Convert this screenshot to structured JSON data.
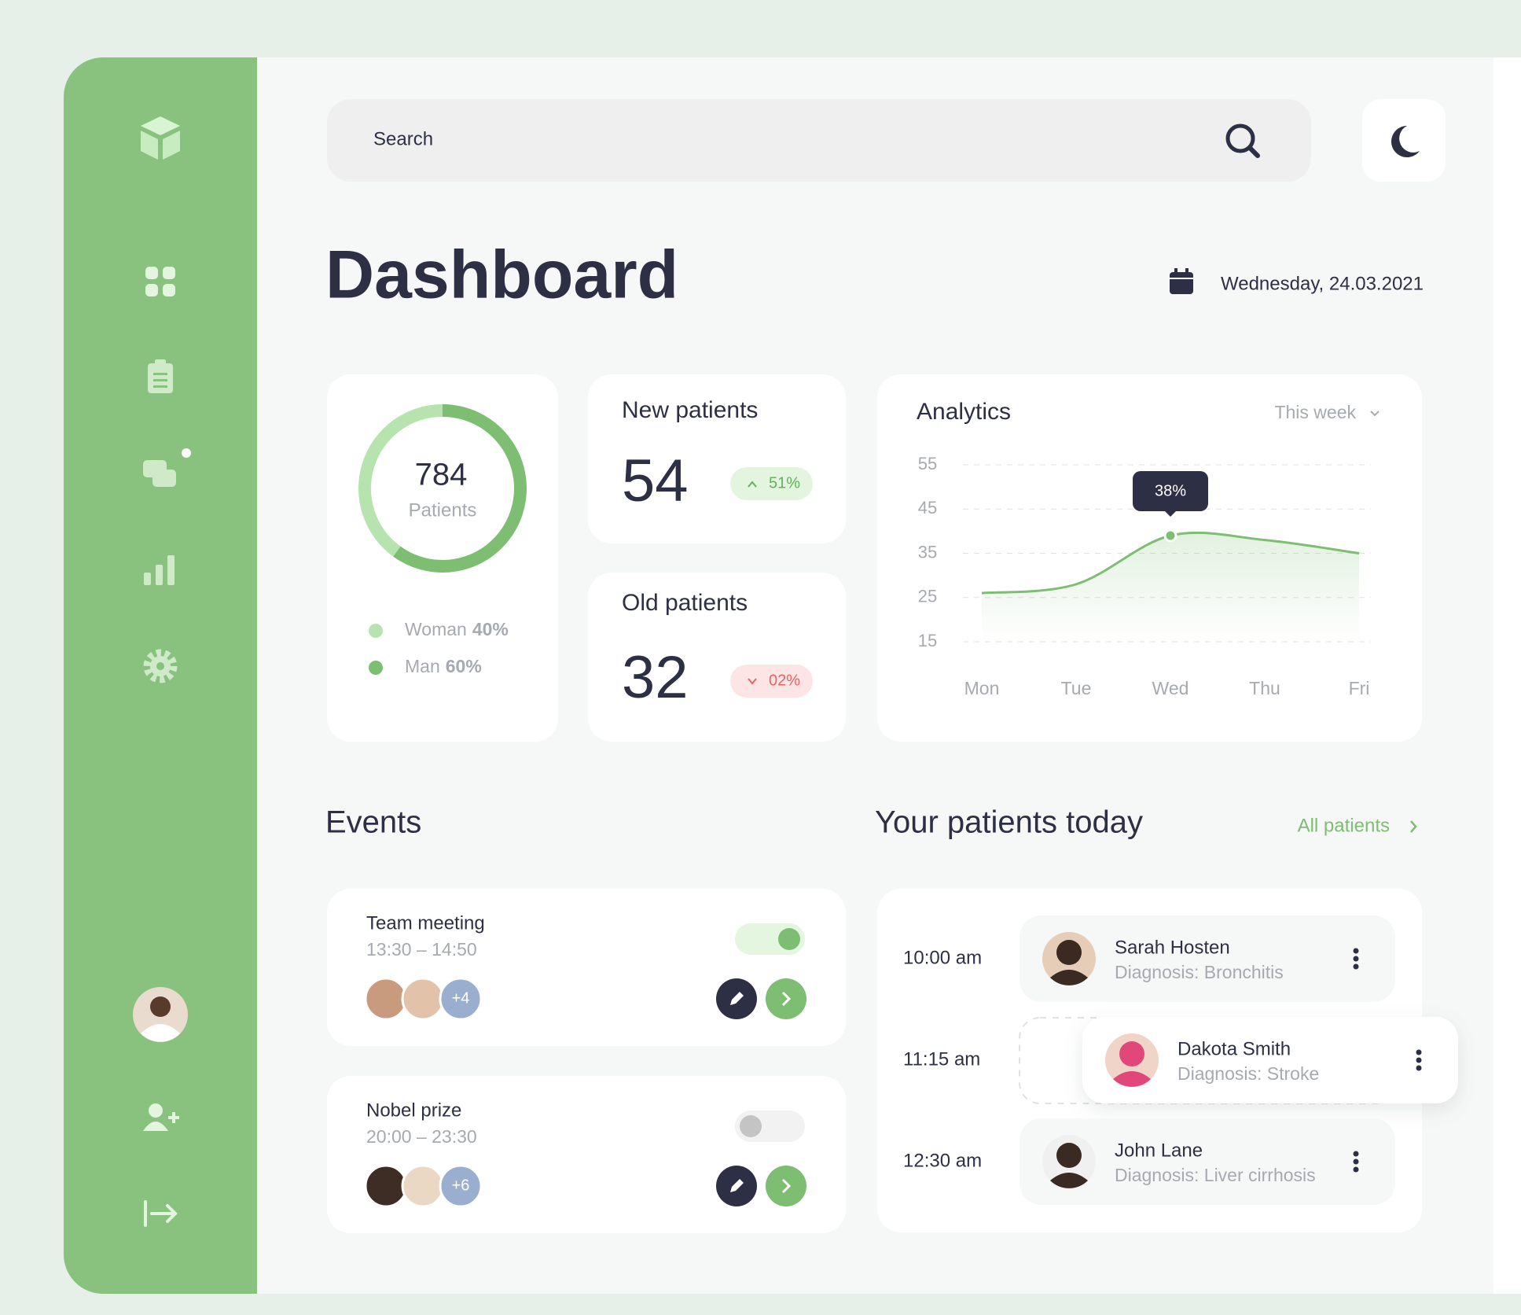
{
  "search": {
    "placeholder": "Search"
  },
  "header": {
    "title": "Dashboard",
    "date": "Wednesday, 24.03.2021"
  },
  "chart_data": [
    {
      "type": "pie",
      "title": "784",
      "subtitle": "Patients",
      "categories": [
        "Woman",
        "Man"
      ],
      "values": [
        40,
        60
      ],
      "value_labels": [
        "40%",
        "60%"
      ],
      "colors": [
        "#b7e4ae",
        "#7dbe72"
      ]
    },
    {
      "type": "line",
      "title": "Analytics",
      "subtitle": "This week",
      "categories": [
        "Mon",
        "Tue",
        "Wed",
        "Thu",
        "Fri"
      ],
      "values": [
        26,
        28,
        39,
        38,
        35
      ],
      "color": "#7dbe72",
      "ylim": [
        15,
        55
      ],
      "yticks": [
        15,
        25,
        35,
        45,
        55
      ],
      "grid": true,
      "annotation": "38%"
    }
  ],
  "new_patients": {
    "title": "New patients",
    "value": 54,
    "change": "51%"
  },
  "old_patients": {
    "title": "Old patients",
    "value": 32,
    "change": "02%"
  },
  "events": {
    "title": "Events",
    "items": [
      {
        "title": "Team meeting",
        "time": "13:30 – 14:50",
        "more": "+4",
        "enabled": true
      },
      {
        "title": "Nobel prize",
        "time": "20:00 – 23:30",
        "more": "+6",
        "enabled": false
      }
    ]
  },
  "patients_today": {
    "title": "Your patients today",
    "link": "All patients",
    "items": [
      {
        "time": "10:00 am",
        "name": "Sarah Hosten",
        "diagnosis": "Diagnosis: Bronchitis"
      },
      {
        "time": "11:15 am",
        "name": "Dakota Smith",
        "diagnosis": "Diagnosis: Stroke"
      },
      {
        "time": "12:30 am",
        "name": "John Lane",
        "diagnosis": "Diagnosis: Liver cirrhosis"
      }
    ]
  }
}
